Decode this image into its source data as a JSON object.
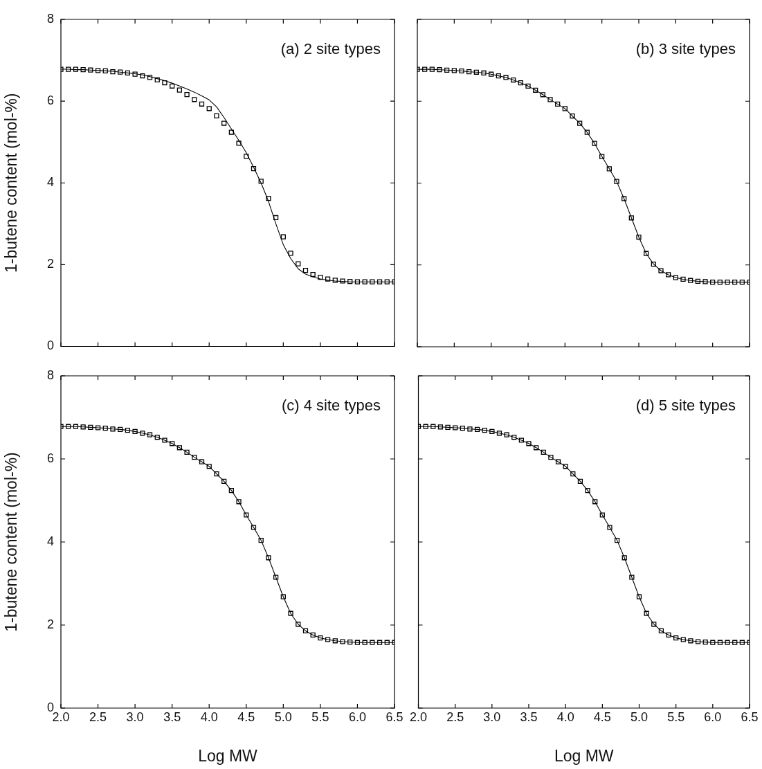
{
  "chart_data": [
    {
      "type": "line",
      "ylabel": "1-butene content (mol-%)",
      "annotations": [
        "(a) 2 site types"
      ],
      "tick_labels": "y",
      "x": [
        2.0,
        2.1,
        2.2,
        2.3,
        2.4,
        2.5,
        2.6,
        2.7,
        2.8,
        2.9,
        3.0,
        3.1,
        3.2,
        3.3,
        3.4,
        3.5,
        3.6,
        3.7,
        3.8,
        3.9,
        4.0,
        4.1,
        4.2,
        4.3,
        4.4,
        4.5,
        4.6,
        4.7,
        4.8,
        4.9,
        5.0,
        5.1,
        5.2,
        5.3,
        5.4,
        5.5,
        5.6,
        5.7,
        5.8,
        5.9,
        6.0,
        6.1,
        6.2,
        6.3,
        6.4,
        6.5
      ],
      "series": [
        {
          "type": "scatter",
          "marker": "square",
          "color": "#000000",
          "values": [
            6.78,
            6.78,
            6.78,
            6.77,
            6.76,
            6.75,
            6.74,
            6.72,
            6.71,
            6.69,
            6.66,
            6.62,
            6.58,
            6.52,
            6.45,
            6.37,
            6.27,
            6.16,
            6.04,
            5.93,
            5.82,
            5.64,
            5.46,
            5.24,
            4.97,
            4.65,
            4.35,
            4.04,
            3.62,
            3.15,
            2.68,
            2.28,
            2.02,
            1.86,
            1.76,
            1.69,
            1.65,
            1.62,
            1.6,
            1.59,
            1.58,
            1.58,
            1.58,
            1.58,
            1.58,
            1.58
          ]
        },
        {
          "type": "line",
          "marker": "none",
          "color": "#000000",
          "values": [
            6.78,
            6.78,
            6.77,
            6.77,
            6.76,
            6.75,
            6.74,
            6.73,
            6.71,
            6.69,
            6.67,
            6.64,
            6.6,
            6.55,
            6.5,
            6.44,
            6.37,
            6.3,
            6.22,
            6.13,
            6.03,
            5.86,
            5.6,
            5.32,
            5.04,
            4.74,
            4.38,
            4.0,
            3.55,
            3.0,
            2.49,
            2.15,
            1.9,
            1.77,
            1.7,
            1.65,
            1.62,
            1.6,
            1.59,
            1.58,
            1.58,
            1.58,
            1.58,
            1.58,
            1.58,
            1.58
          ]
        }
      ],
      "xlim": [
        2,
        6.5
      ],
      "ylim": [
        0,
        8
      ],
      "xticks": [
        2,
        2.5,
        3,
        3.5,
        4,
        4.5,
        5,
        5.5,
        6,
        6.5
      ],
      "yticks": [
        0,
        2,
        4,
        6,
        8
      ]
    },
    {
      "type": "line",
      "annotations": [
        "(b) 3 site types"
      ],
      "tick_labels": false,
      "x": [
        2.0,
        2.1,
        2.2,
        2.3,
        2.4,
        2.5,
        2.6,
        2.7,
        2.8,
        2.9,
        3.0,
        3.1,
        3.2,
        3.3,
        3.4,
        3.5,
        3.6,
        3.7,
        3.8,
        3.9,
        4.0,
        4.1,
        4.2,
        4.3,
        4.4,
        4.5,
        4.6,
        4.7,
        4.8,
        4.9,
        5.0,
        5.1,
        5.2,
        5.3,
        5.4,
        5.5,
        5.6,
        5.7,
        5.8,
        5.9,
        6.0,
        6.1,
        6.2,
        6.3,
        6.4,
        6.5
      ],
      "series": [
        {
          "type": "scatter",
          "marker": "square",
          "color": "#000000",
          "values": [
            6.78,
            6.78,
            6.78,
            6.77,
            6.76,
            6.75,
            6.74,
            6.72,
            6.71,
            6.69,
            6.66,
            6.62,
            6.58,
            6.52,
            6.45,
            6.37,
            6.27,
            6.16,
            6.04,
            5.93,
            5.82,
            5.64,
            5.46,
            5.24,
            4.97,
            4.65,
            4.35,
            4.04,
            3.62,
            3.15,
            2.68,
            2.28,
            2.02,
            1.86,
            1.76,
            1.69,
            1.65,
            1.62,
            1.6,
            1.59,
            1.58,
            1.58,
            1.58,
            1.58,
            1.58,
            1.58
          ]
        },
        {
          "type": "line",
          "marker": "none",
          "color": "#000000",
          "values": [
            6.78,
            6.78,
            6.78,
            6.77,
            6.76,
            6.75,
            6.74,
            6.72,
            6.71,
            6.69,
            6.66,
            6.62,
            6.58,
            6.52,
            6.45,
            6.37,
            6.27,
            6.16,
            6.04,
            5.93,
            5.82,
            5.64,
            5.46,
            5.24,
            4.97,
            4.65,
            4.35,
            4.04,
            3.62,
            3.15,
            2.68,
            2.28,
            2.02,
            1.86,
            1.76,
            1.69,
            1.65,
            1.62,
            1.6,
            1.59,
            1.58,
            1.58,
            1.58,
            1.58,
            1.58,
            1.58
          ]
        }
      ],
      "xlim": [
        2,
        6.5
      ],
      "ylim": [
        0,
        8
      ],
      "xticks": [
        2,
        2.5,
        3,
        3.5,
        4,
        4.5,
        5,
        5.5,
        6,
        6.5
      ],
      "yticks": [
        0,
        2,
        4,
        6,
        8
      ]
    },
    {
      "type": "line",
      "xlabel": "Log MW",
      "ylabel": "1-butene content (mol-%)",
      "annotations": [
        "(c) 4 site types"
      ],
      "x": [
        2.0,
        2.1,
        2.2,
        2.3,
        2.4,
        2.5,
        2.6,
        2.7,
        2.8,
        2.9,
        3.0,
        3.1,
        3.2,
        3.3,
        3.4,
        3.5,
        3.6,
        3.7,
        3.8,
        3.9,
        4.0,
        4.1,
        4.2,
        4.3,
        4.4,
        4.5,
        4.6,
        4.7,
        4.8,
        4.9,
        5.0,
        5.1,
        5.2,
        5.3,
        5.4,
        5.5,
        5.6,
        5.7,
        5.8,
        5.9,
        6.0,
        6.1,
        6.2,
        6.3,
        6.4,
        6.5
      ],
      "series": [
        {
          "type": "scatter",
          "marker": "square",
          "color": "#000000",
          "values": [
            6.78,
            6.78,
            6.78,
            6.77,
            6.76,
            6.75,
            6.74,
            6.72,
            6.71,
            6.69,
            6.66,
            6.62,
            6.58,
            6.52,
            6.45,
            6.37,
            6.27,
            6.16,
            6.04,
            5.93,
            5.82,
            5.64,
            5.46,
            5.24,
            4.97,
            4.65,
            4.35,
            4.04,
            3.62,
            3.15,
            2.68,
            2.28,
            2.02,
            1.86,
            1.76,
            1.69,
            1.65,
            1.62,
            1.6,
            1.59,
            1.58,
            1.58,
            1.58,
            1.58,
            1.58,
            1.58
          ]
        },
        {
          "type": "line",
          "marker": "none",
          "color": "#000000",
          "values": [
            6.78,
            6.78,
            6.78,
            6.77,
            6.76,
            6.75,
            6.74,
            6.72,
            6.71,
            6.69,
            6.66,
            6.62,
            6.58,
            6.52,
            6.45,
            6.37,
            6.27,
            6.16,
            6.04,
            5.93,
            5.82,
            5.64,
            5.46,
            5.24,
            4.97,
            4.65,
            4.35,
            4.04,
            3.62,
            3.15,
            2.68,
            2.28,
            2.02,
            1.86,
            1.76,
            1.69,
            1.65,
            1.62,
            1.6,
            1.59,
            1.58,
            1.58,
            1.58,
            1.58,
            1.58,
            1.58
          ]
        }
      ],
      "xlim": [
        2,
        6.5
      ],
      "ylim": [
        0,
        8
      ],
      "xticks": [
        {
          "value": 2,
          "label": "2.0"
        },
        {
          "value": 2.5,
          "label": "2.5"
        },
        {
          "value": 3,
          "label": "3.0"
        },
        {
          "value": 3.5,
          "label": "3.5"
        },
        {
          "value": 4,
          "label": "4.0"
        },
        {
          "value": 4.5,
          "label": "4.5"
        },
        {
          "value": 5,
          "label": "5.0"
        },
        {
          "value": 5.5,
          "label": "5.5"
        },
        {
          "value": 6,
          "label": "6.0"
        },
        {
          "value": 6.5,
          "label": "6.5"
        }
      ],
      "yticks": [
        0,
        2,
        4,
        6,
        8
      ]
    },
    {
      "type": "line",
      "xlabel": "Log MW",
      "annotations": [
        "(d) 5 site types"
      ],
      "tick_labels": "x",
      "x": [
        2.0,
        2.1,
        2.2,
        2.3,
        2.4,
        2.5,
        2.6,
        2.7,
        2.8,
        2.9,
        3.0,
        3.1,
        3.2,
        3.3,
        3.4,
        3.5,
        3.6,
        3.7,
        3.8,
        3.9,
        4.0,
        4.1,
        4.2,
        4.3,
        4.4,
        4.5,
        4.6,
        4.7,
        4.8,
        4.9,
        5.0,
        5.1,
        5.2,
        5.3,
        5.4,
        5.5,
        5.6,
        5.7,
        5.8,
        5.9,
        6.0,
        6.1,
        6.2,
        6.3,
        6.4,
        6.5
      ],
      "series": [
        {
          "type": "scatter",
          "marker": "square",
          "color": "#000000",
          "values": [
            6.78,
            6.78,
            6.78,
            6.77,
            6.76,
            6.75,
            6.74,
            6.72,
            6.71,
            6.69,
            6.66,
            6.62,
            6.58,
            6.52,
            6.45,
            6.37,
            6.27,
            6.16,
            6.04,
            5.93,
            5.82,
            5.64,
            5.46,
            5.24,
            4.97,
            4.65,
            4.35,
            4.04,
            3.62,
            3.15,
            2.68,
            2.28,
            2.02,
            1.86,
            1.76,
            1.69,
            1.65,
            1.62,
            1.6,
            1.59,
            1.58,
            1.58,
            1.58,
            1.58,
            1.58,
            1.58
          ]
        },
        {
          "type": "line",
          "marker": "none",
          "color": "#000000",
          "values": [
            6.78,
            6.78,
            6.78,
            6.77,
            6.76,
            6.75,
            6.74,
            6.72,
            6.71,
            6.69,
            6.66,
            6.62,
            6.58,
            6.52,
            6.45,
            6.37,
            6.27,
            6.16,
            6.04,
            5.93,
            5.82,
            5.64,
            5.46,
            5.24,
            4.97,
            4.65,
            4.35,
            4.04,
            3.62,
            3.15,
            2.68,
            2.28,
            2.02,
            1.86,
            1.76,
            1.69,
            1.65,
            1.62,
            1.6,
            1.59,
            1.58,
            1.58,
            1.58,
            1.58,
            1.58,
            1.58
          ]
        }
      ],
      "xlim": [
        2,
        6.5
      ],
      "ylim": [
        0,
        8
      ],
      "xticks": [
        {
          "value": 2,
          "label": "2.0"
        },
        {
          "value": 2.5,
          "label": "2.5"
        },
        {
          "value": 3,
          "label": "3.0"
        },
        {
          "value": 3.5,
          "label": "3.5"
        },
        {
          "value": 4,
          "label": "4.0"
        },
        {
          "value": 4.5,
          "label": "4.5"
        },
        {
          "value": 5,
          "label": "5.0"
        },
        {
          "value": 5.5,
          "label": "5.5"
        },
        {
          "value": 6,
          "label": "6.0"
        },
        {
          "value": 6.5,
          "label": "6.5"
        }
      ],
      "yticks": [
        0,
        2,
        4,
        6,
        8
      ]
    }
  ]
}
